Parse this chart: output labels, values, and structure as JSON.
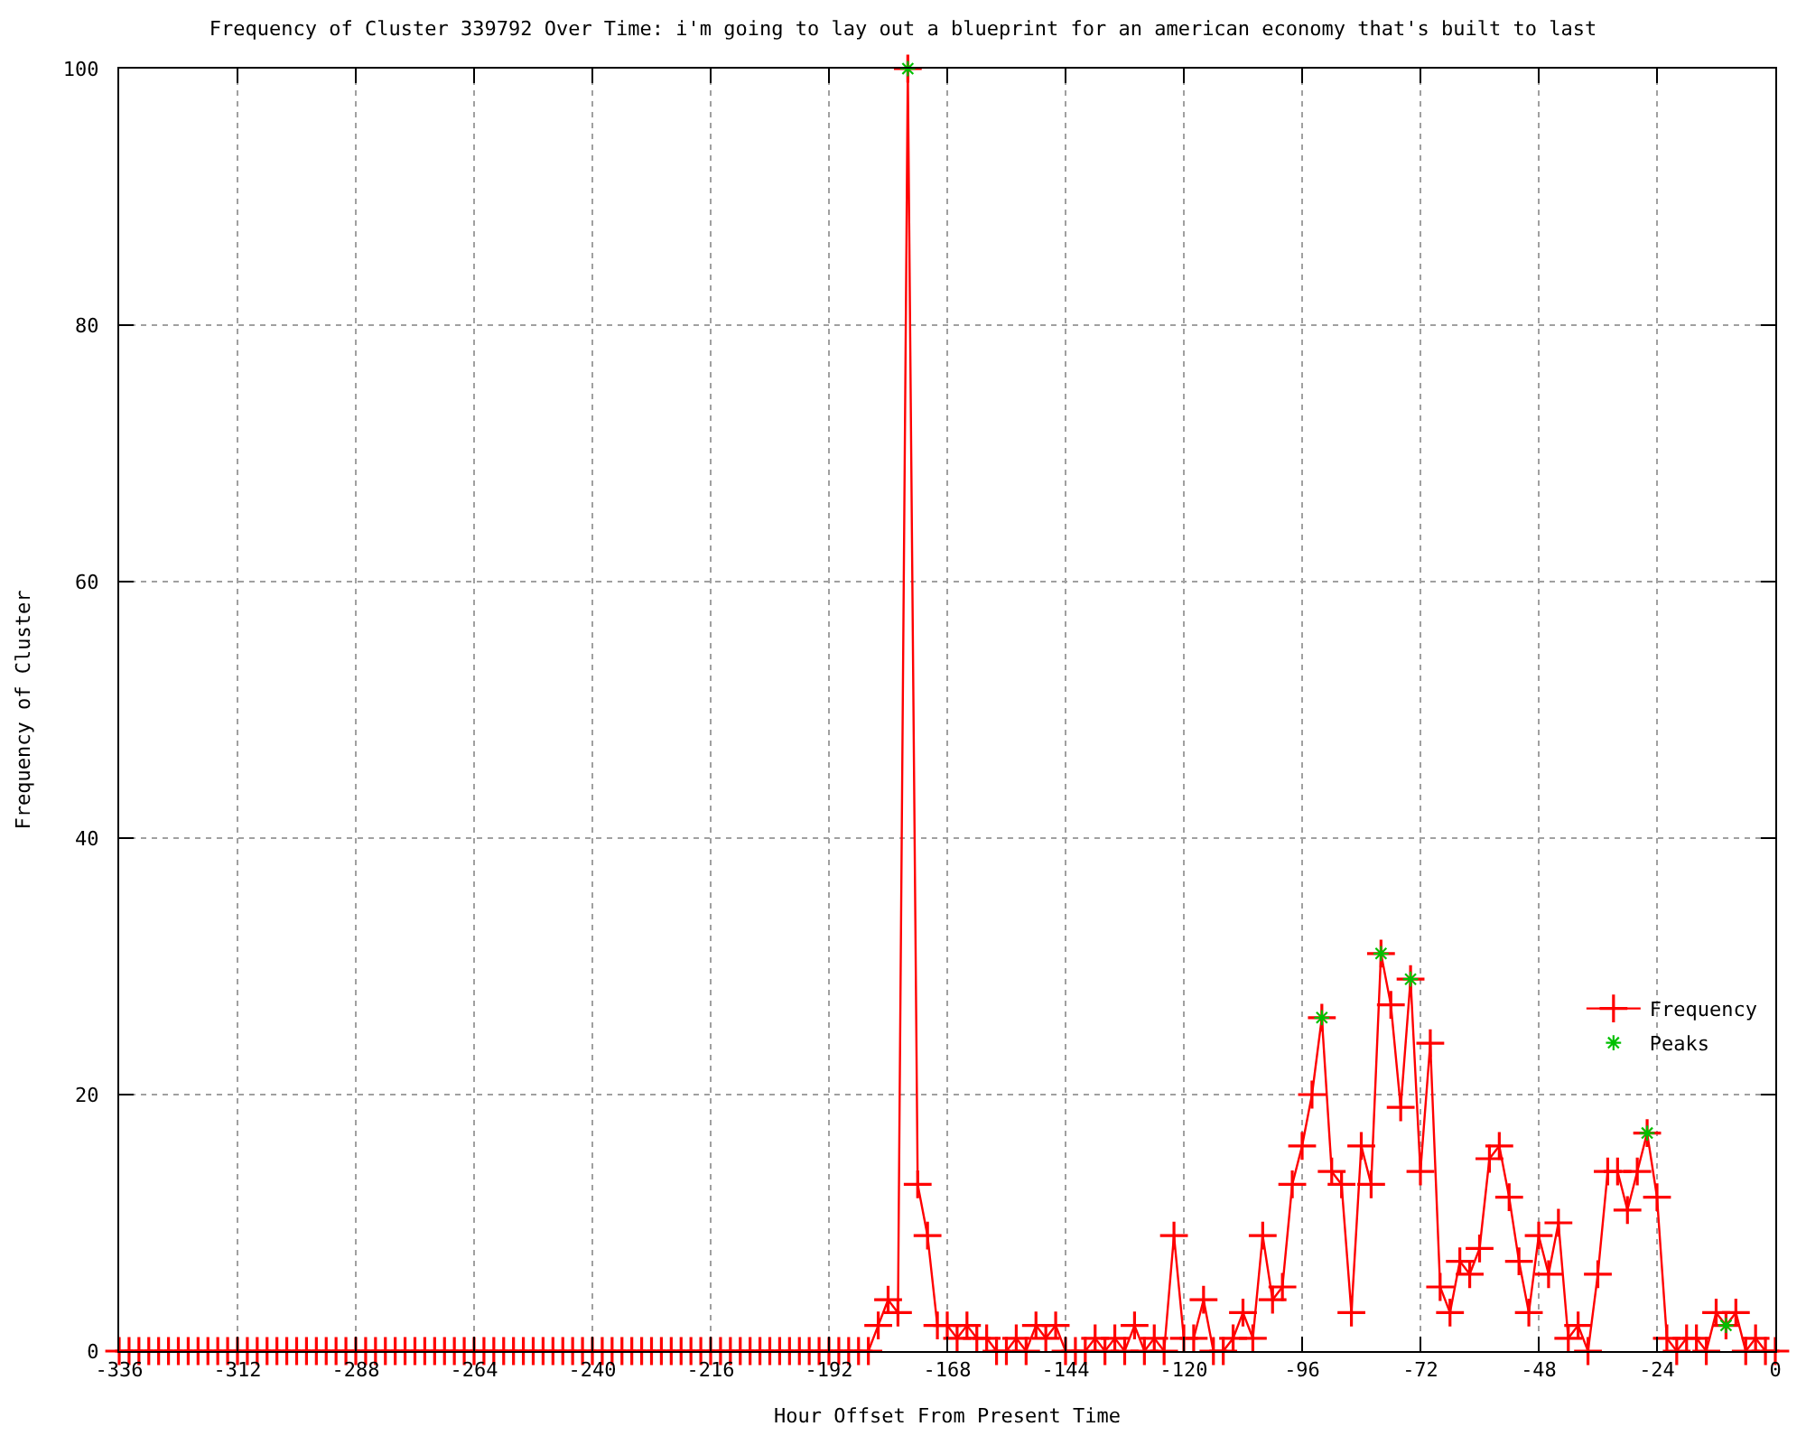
{
  "chart_data": {
    "type": "line",
    "title": "Frequency of Cluster 339792 Over Time: i'm going to lay out a blueprint for an american economy that's built to last",
    "xlabel": "Hour Offset From Present Time",
    "ylabel": "Frequency of Cluster",
    "x": [
      -336,
      -334,
      -332,
      -330,
      -328,
      -326,
      -324,
      -322,
      -320,
      -318,
      -316,
      -314,
      -312,
      -310,
      -308,
      -306,
      -304,
      -302,
      -300,
      -298,
      -296,
      -294,
      -292,
      -290,
      -288,
      -286,
      -284,
      -282,
      -280,
      -278,
      -276,
      -274,
      -272,
      -270,
      -268,
      -266,
      -264,
      -262,
      -260,
      -258,
      -256,
      -254,
      -252,
      -250,
      -248,
      -246,
      -244,
      -242,
      -240,
      -238,
      -236,
      -234,
      -232,
      -230,
      -228,
      -226,
      -224,
      -222,
      -220,
      -218,
      -216,
      -214,
      -212,
      -210,
      -208,
      -206,
      -204,
      -202,
      -200,
      -198,
      -196,
      -194,
      -192,
      -190,
      -188,
      -186,
      -184,
      -182,
      -180,
      -178,
      -176,
      -174,
      -172,
      -170,
      -168,
      -166,
      -164,
      -162,
      -160,
      -158,
      -156,
      -154,
      -152,
      -150,
      -148,
      -146,
      -144,
      -142,
      -140,
      -138,
      -136,
      -134,
      -132,
      -130,
      -128,
      -126,
      -124,
      -122,
      -120,
      -118,
      -116,
      -114,
      -112,
      -110,
      -108,
      -106,
      -104,
      -102,
      -100,
      -98,
      -96,
      -94,
      -92,
      -90,
      -88,
      -86,
      -84,
      -82,
      -80,
      -78,
      -76,
      -74,
      -72,
      -70,
      -68,
      -66,
      -64,
      -62,
      -60,
      -58,
      -56,
      -54,
      -52,
      -50,
      -48,
      -46,
      -44,
      -42,
      -40,
      -38,
      -36,
      -34,
      -32,
      -30,
      -28,
      -26,
      -24,
      -22,
      -20,
      -18,
      -16,
      -14,
      -12,
      -10,
      -8,
      -6,
      -4,
      -2,
      0
    ],
    "series": [
      {
        "name": "Frequency",
        "type": "line",
        "color": "#ff0000",
        "marker": "cross",
        "line_style": "solid",
        "values": [
          0,
          0,
          0,
          0,
          0,
          0,
          0,
          0,
          0,
          0,
          0,
          0,
          0,
          0,
          0,
          0,
          0,
          0,
          0,
          0,
          0,
          0,
          0,
          0,
          0,
          0,
          0,
          0,
          0,
          0,
          0,
          0,
          0,
          0,
          0,
          0,
          0,
          0,
          0,
          0,
          0,
          0,
          0,
          0,
          0,
          0,
          0,
          0,
          0,
          0,
          0,
          0,
          0,
          0,
          0,
          0,
          0,
          0,
          0,
          0,
          0,
          0,
          0,
          0,
          0,
          0,
          0,
          0,
          0,
          0,
          0,
          0,
          0,
          0,
          0,
          0,
          0,
          2,
          4,
          3,
          100,
          13,
          9,
          2,
          2,
          1,
          2,
          1,
          1,
          0,
          0,
          1,
          0,
          2,
          1,
          2,
          0,
          0,
          0,
          1,
          0,
          1,
          0,
          2,
          0,
          1,
          0,
          9,
          1,
          1,
          4,
          0,
          0,
          1,
          3,
          1,
          9,
          4,
          5,
          13,
          16,
          20,
          26,
          14,
          13,
          3,
          16,
          13,
          31,
          27,
          19,
          29,
          14,
          24,
          5,
          3,
          7,
          6,
          8,
          15,
          16,
          12,
          7,
          3,
          9,
          6,
          10,
          1,
          2,
          0,
          6,
          14,
          14,
          11,
          14,
          17,
          12,
          1,
          0,
          1,
          1,
          0,
          3,
          2,
          3,
          0,
          1,
          0,
          0
        ]
      },
      {
        "name": "Peaks",
        "type": "scatter",
        "color": "#00c000",
        "marker": "cross",
        "x": [
          -176,
          -92,
          -80,
          -74,
          -26,
          -10
        ],
        "values": [
          100,
          26,
          31,
          29,
          17,
          2
        ]
      }
    ],
    "xlim": [
      -336,
      0
    ],
    "xticks": [
      -336,
      -312,
      -288,
      -264,
      -240,
      -216,
      -192,
      -168,
      -144,
      -120,
      -96,
      -72,
      -48,
      -24,
      0
    ],
    "ylim": [
      0,
      100
    ],
    "yticks": [
      0,
      20,
      40,
      60,
      80,
      100
    ],
    "grid": true,
    "legend": "bottom right"
  }
}
